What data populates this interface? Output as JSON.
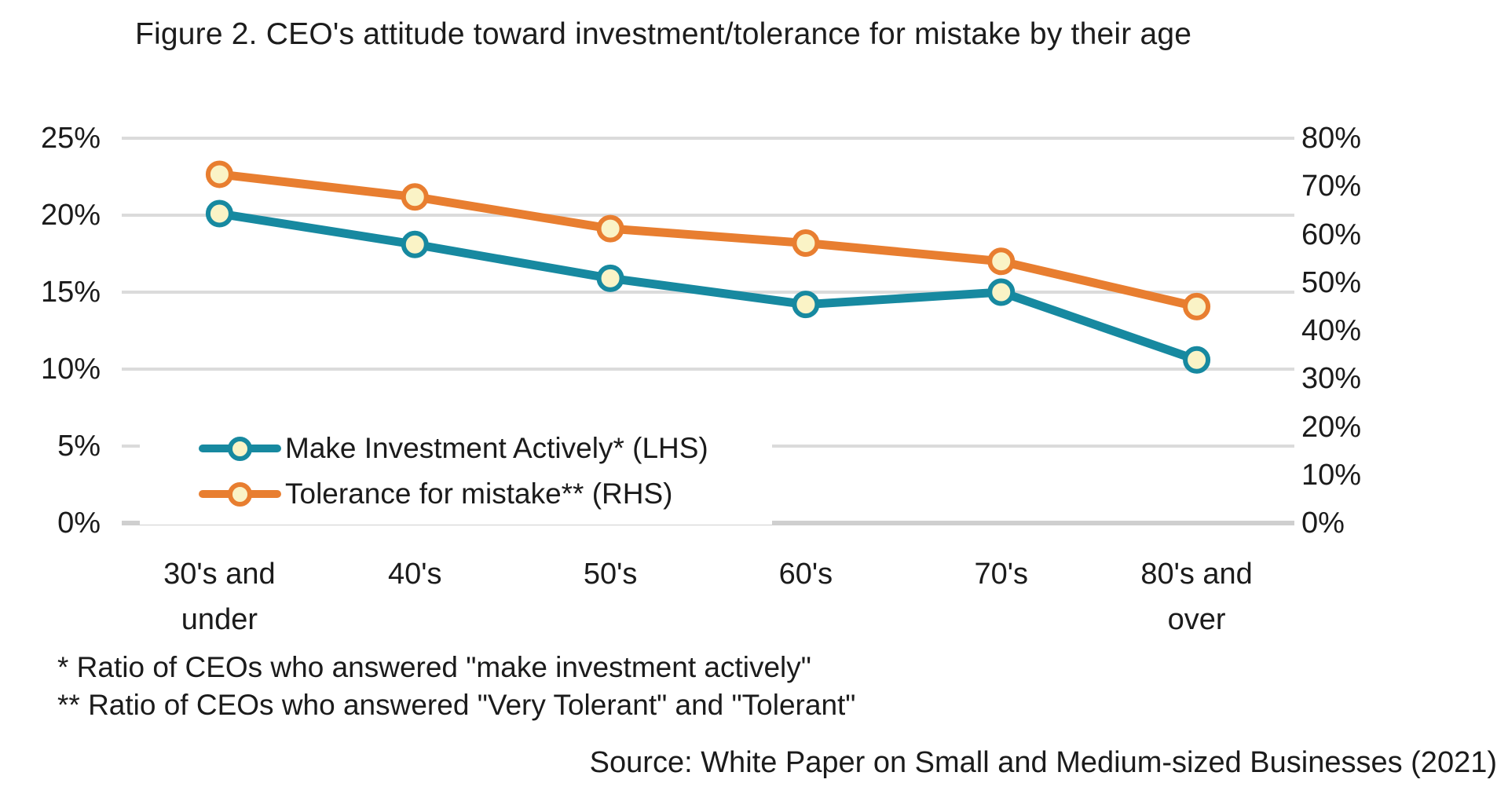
{
  "title": "Figure 2. CEO's attitude toward investment/tolerance for mistake by their age",
  "footnotes": {
    "line1": "* Ratio of CEOs who answered \"make investment actively\"",
    "line2": "** Ratio of CEOs who answered \"Very Tolerant\" and \"Tolerant\""
  },
  "source": "Source: White Paper on Small and Medium-sized Businesses (2021)",
  "colors": {
    "teal_series": "#1789A0",
    "orange_series": "#E87E30",
    "marker_fill": "#FAF3C6",
    "gridline": "#DBDBDB",
    "axis_line": "#CFCFCF",
    "text": "#1b1b1b"
  },
  "chart_data": {
    "type": "line",
    "title": "Figure 2. CEO's attitude toward investment/tolerance for mistake by their age",
    "categories": [
      "30's and\nunder",
      "40's",
      "50's",
      "60's",
      "70's",
      "80's and\nover"
    ],
    "series": [
      {
        "name": "Make Investment Actively* (LHS)",
        "axis": "left",
        "color": "#1789A0",
        "values": [
          20.1,
          18.1,
          15.9,
          14.2,
          15.0,
          10.6
        ]
      },
      {
        "name": "Tolerance for mistake** (RHS)",
        "axis": "right",
        "color": "#E87E30",
        "values": [
          72.5,
          67.8,
          61.2,
          58.2,
          54.4,
          45.0
        ]
      }
    ],
    "left_axis": {
      "ticks": [
        "25%",
        "20%",
        "15%",
        "10%",
        "5%",
        "0%"
      ],
      "min": 0,
      "max": 25
    },
    "right_axis": {
      "ticks": [
        "80%",
        "70%",
        "60%",
        "50%",
        "40%",
        "30%",
        "20%",
        "10%",
        "0%"
      ],
      "min": 0,
      "max": 80
    },
    "grid": true,
    "legend_position": "inside-bottom-left",
    "marker_fill": "#FAF3C6"
  }
}
